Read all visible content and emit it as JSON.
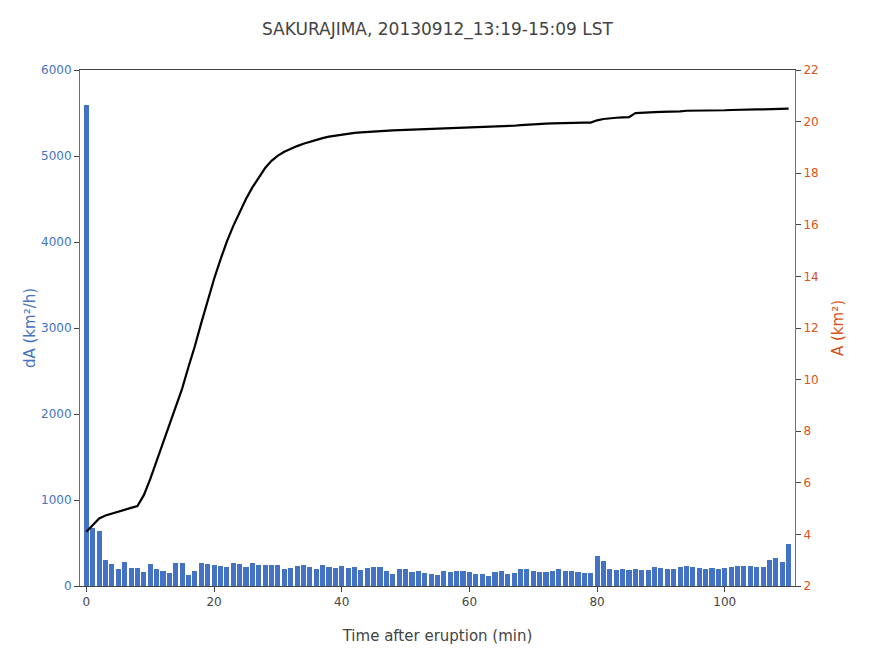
{
  "chart_data": {
    "type": "bar",
    "title": "SAKURAJIMA, 20130912_13:19-15:09 LST",
    "xlabel": "Time after eruption (min)",
    "ylabel": "dA (km²/h)",
    "y2label": "A (km²)",
    "x": [
      0,
      1,
      2,
      3,
      4,
      5,
      6,
      7,
      8,
      9,
      10,
      11,
      12,
      13,
      14,
      15,
      16,
      17,
      18,
      19,
      20,
      21,
      22,
      23,
      24,
      25,
      26,
      27,
      28,
      29,
      30,
      31,
      32,
      33,
      34,
      35,
      36,
      37,
      38,
      39,
      40,
      41,
      42,
      43,
      44,
      45,
      46,
      47,
      48,
      49,
      50,
      51,
      52,
      53,
      54,
      55,
      56,
      57,
      58,
      59,
      60,
      61,
      62,
      63,
      64,
      65,
      66,
      67,
      68,
      69,
      70,
      71,
      72,
      73,
      74,
      75,
      76,
      77,
      78,
      79,
      80,
      81,
      82,
      83,
      84,
      85,
      86,
      87,
      88,
      89,
      90,
      91,
      92,
      93,
      94,
      95,
      96,
      97,
      98,
      99,
      100,
      101,
      102,
      103,
      104,
      105,
      106,
      107,
      108,
      109,
      110
    ],
    "series": [
      {
        "type": "bar",
        "color": "#4472C4",
        "values": [
          5590,
          670,
          640,
          300,
          260,
          200,
          280,
          210,
          210,
          160,
          260,
          200,
          180,
          150,
          270,
          270,
          130,
          180,
          270,
          260,
          240,
          230,
          220,
          270,
          260,
          220,
          270,
          240,
          250,
          250,
          240,
          200,
          210,
          230,
          250,
          220,
          200,
          240,
          220,
          210,
          230,
          210,
          220,
          190,
          210,
          220,
          220,
          180,
          140,
          200,
          200,
          160,
          170,
          150,
          140,
          130,
          180,
          160,
          170,
          180,
          160,
          140,
          140,
          120,
          160,
          170,
          140,
          150,
          200,
          200,
          170,
          160,
          160,
          180,
          200,
          170,
          170,
          160,
          150,
          150,
          350,
          290,
          200,
          190,
          200,
          190,
          200,
          190,
          190,
          220,
          210,
          200,
          200,
          220,
          230,
          220,
          210,
          200,
          210,
          200,
          210,
          220,
          230,
          230,
          230,
          220,
          220,
          300,
          330,
          280,
          490
        ]
      },
      {
        "type": "line",
        "color": "#000000",
        "axis": "y2",
        "values": [
          4.1,
          4.36,
          4.62,
          4.73,
          4.81,
          4.88,
          4.95,
          5.03,
          5.1,
          5.52,
          6.14,
          6.83,
          7.55,
          8.2,
          8.9,
          9.65,
          10.5,
          11.3,
          12.2,
          13.1,
          13.9,
          14.65,
          15.35,
          15.95,
          16.5,
          17.0,
          17.45,
          17.85,
          18.2,
          18.48,
          18.68,
          18.83,
          18.95,
          19.05,
          19.14,
          19.22,
          19.3,
          19.36,
          19.42,
          19.46,
          19.5,
          19.53,
          19.56,
          19.58,
          19.6,
          19.62,
          19.64,
          19.65,
          19.66,
          19.67,
          19.68,
          19.69,
          19.7,
          19.7,
          19.71,
          19.71,
          19.72,
          19.72,
          19.73,
          19.74,
          19.75,
          19.76,
          19.77,
          19.78,
          19.79,
          19.81,
          19.82,
          19.84,
          19.86,
          19.88,
          19.9,
          19.91,
          19.92,
          19.93,
          19.94,
          19.94,
          19.95,
          19.95,
          19.96,
          19.96,
          20.05,
          20.1,
          20.13,
          20.15,
          20.16,
          20.17,
          20.33,
          20.35,
          20.36,
          20.37,
          20.38,
          20.38,
          20.39,
          20.4,
          20.42,
          20.42,
          20.43,
          20.43,
          20.43,
          20.44,
          20.44,
          20.45,
          20.46,
          20.46,
          20.47,
          20.47,
          20.47,
          20.48,
          20.49,
          20.49,
          20.5
        ]
      }
    ],
    "xlim": [
      -1,
      111
    ],
    "xticks": [
      0,
      20,
      40,
      60,
      80,
      100
    ],
    "ylim": [
      0,
      6000
    ],
    "yticks": [
      0,
      1000,
      2000,
      3000,
      4000,
      5000,
      6000
    ],
    "y2lim": [
      2,
      22
    ],
    "y2ticks": [
      2,
      4,
      6,
      8,
      10,
      12,
      14,
      16,
      18,
      20,
      22
    ],
    "grid": false
  }
}
